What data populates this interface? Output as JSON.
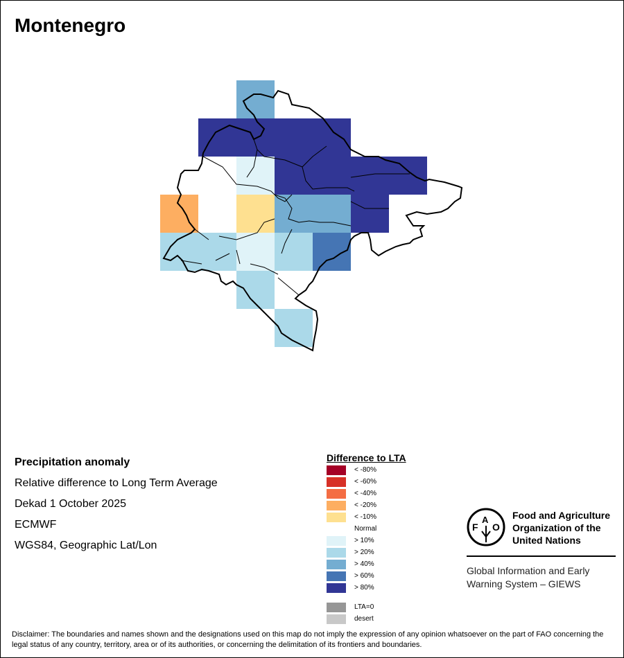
{
  "title": "Montenegro",
  "info": {
    "line1": "Precipitation anomaly",
    "line2": "Relative difference to Long Term Average",
    "line3": "Dekad 1 October 2025",
    "line4": "ECMWF",
    "line5": "WGS84, Geographic Lat/Lon"
  },
  "legend": {
    "title": "Difference to LTA",
    "items": [
      {
        "label": "< -80%",
        "color": "#a50026"
      },
      {
        "label": "< -60%",
        "color": "#d73027"
      },
      {
        "label": "< -40%",
        "color": "#f46d43"
      },
      {
        "label": "< -20%",
        "color": "#fdae61"
      },
      {
        "label": "< -10%",
        "color": "#fee090"
      },
      {
        "label": "Normal",
        "color": "#ffffff"
      },
      {
        "label": "> 10%",
        "color": "#e0f3f8"
      },
      {
        "label": "> 20%",
        "color": "#abd9e9"
      },
      {
        "label": "> 40%",
        "color": "#74add1"
      },
      {
        "label": "> 60%",
        "color": "#4575b4"
      },
      {
        "label": "> 80%",
        "color": "#313695"
      }
    ],
    "extra": [
      {
        "label": "LTA=0",
        "color": "#969696"
      },
      {
        "label": "desert",
        "color": "#c8c8c8"
      }
    ]
  },
  "grid": {
    "legend_index_rows": [
      [
        -1,
        -1,
        8,
        -1,
        -1,
        -1,
        -1
      ],
      [
        -1,
        10,
        10,
        10,
        10,
        -1,
        -1
      ],
      [
        -1,
        -1,
        6,
        10,
        10,
        10,
        10
      ],
      [
        3,
        5,
        4,
        8,
        8,
        10,
        5
      ],
      [
        7,
        7,
        6,
        7,
        9,
        -1,
        -1
      ],
      [
        -1,
        -1,
        7,
        -1,
        -1,
        -1,
        -1
      ],
      [
        -1,
        -1,
        -1,
        7,
        -1,
        -1,
        -1
      ]
    ]
  },
  "logo": {
    "org": "Food and Agriculture Organization of the United Nations",
    "emblem_letters": "FAO FIAT PANIS",
    "system": "Global Information and Early Warning System – GIEWS"
  },
  "disclaimer": "Disclaimer: The boundaries and names shown and the designations used on this map do not imply the expression of any opinion whatsoever on the part of FAO concerning the legal status of any country, territory, area or of its authorities, or concerning the delimitation of its frontiers and boundaries."
}
